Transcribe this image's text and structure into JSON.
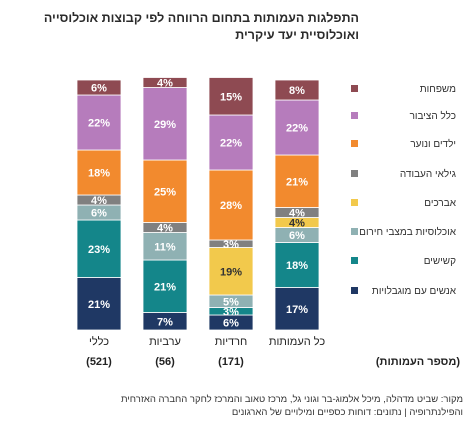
{
  "title_lines": [
    "התפלגות העמותות בתחום הרווחה לפי קבוצות אוכלוסייה",
    "ואוכלוסיית יעד עיקרית"
  ],
  "source_lines": [
    "מקור: שביט מדהלה, מיכל אלמוג-בר וגוני גל, מרכז טאוב והמרכז לחקר החברה האזרחית",
    "והפילנתרופיה | נתונים: דוחות כספיים ומילויים של הארגונים"
  ],
  "chart_data": {
    "type": "bar",
    "stacked": true,
    "orientation": "vertical",
    "ylim": [
      0,
      100
    ],
    "unit": "%",
    "legend_position": "right",
    "count_label": "(מספר העמותות)",
    "categories": [
      "כל העמותות",
      "חרדיות",
      "ערביות",
      "כללי"
    ],
    "counts": [
      "",
      "(171)",
      "(56)",
      "(521)"
    ],
    "series": [
      {
        "name": "אנשים עם מוגבלויות",
        "color": "#1f3864",
        "values": [
          17,
          6,
          7,
          21
        ]
      },
      {
        "name": "קשישים",
        "color": "#14868a",
        "values": [
          18,
          3,
          21,
          23
        ]
      },
      {
        "name": "אוכלוסיות במצבי חירום",
        "color": "#8fb1b3",
        "values": [
          6,
          5,
          11,
          6
        ]
      },
      {
        "name": "אברכים",
        "color": "#f2c94c",
        "values": [
          4,
          19,
          0,
          0
        ]
      },
      {
        "name": "גילאי העבודה",
        "color": "#808080",
        "values": [
          4,
          3,
          4,
          4
        ]
      },
      {
        "name": "ילדים ונוער",
        "color": "#f28a2e",
        "values": [
          21,
          28,
          25,
          18
        ]
      },
      {
        "name": "כלל הציבור",
        "color": "#b67cbc",
        "values": [
          22,
          22,
          29,
          22
        ]
      },
      {
        "name": "משפחות",
        "color": "#8e4a52",
        "values": [
          8,
          15,
          4,
          6
        ]
      }
    ]
  }
}
